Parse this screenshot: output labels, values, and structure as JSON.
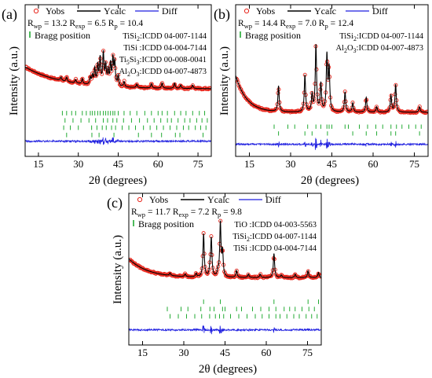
{
  "chart_data": [
    {
      "panel": "(a)",
      "type": "line",
      "xlabel": "2θ (degrees)",
      "ylabel": "Intensity (a.u.)",
      "xlim": [
        10,
        80
      ],
      "xticks": [
        "15",
        "30",
        "45",
        "60",
        "75"
      ],
      "tick_values": [
        15,
        30,
        45,
        60,
        75
      ],
      "legend": {
        "obs": "Yobs",
        "calc": "Ycalc",
        "diff": "Diff",
        "bragg": "Bragg position"
      },
      "stats": {
        "Rwp": "13.2",
        "Rexp": "6.5",
        "Rp": "10.4"
      },
      "phases": [
        {
          "name": "TiSi",
          "sub": "2",
          "rest": ":ICDD  04-007-1144"
        },
        {
          "name": "TiSi",
          "sub": "",
          "rest": " :ICDD  04-004-7144"
        },
        {
          "name": "Ti",
          "sub": "5",
          "mid": "Si",
          "sub2": "3",
          "rest": ":ICDD  00-008-0041"
        },
        {
          "name": "Al",
          "sub": "2",
          "mid": "O",
          "sub2": "3",
          "rest": ":ICDD  04-007-4873"
        }
      ],
      "background": {
        "start": 0.45,
        "end": 0.2,
        "decay": 14
      },
      "peaks": [
        {
          "x": 23.5,
          "h": 0.04
        },
        {
          "x": 25.6,
          "h": 0.05
        },
        {
          "x": 29.0,
          "h": 0.04
        },
        {
          "x": 31.5,
          "h": 0.06
        },
        {
          "x": 34.5,
          "h": 0.08
        },
        {
          "x": 35.3,
          "h": 0.1
        },
        {
          "x": 36.2,
          "h": 0.18
        },
        {
          "x": 37.3,
          "h": 0.22
        },
        {
          "x": 38.2,
          "h": 0.3
        },
        {
          "x": 39.4,
          "h": 0.36
        },
        {
          "x": 40.3,
          "h": 0.22
        },
        {
          "x": 41.2,
          "h": 0.16
        },
        {
          "x": 42.1,
          "h": 0.24
        },
        {
          "x": 43.0,
          "h": 0.3
        },
        {
          "x": 43.7,
          "h": 0.26
        },
        {
          "x": 45.0,
          "h": 0.12
        },
        {
          "x": 47.2,
          "h": 0.06
        },
        {
          "x": 52.0,
          "h": 0.04
        },
        {
          "x": 57.5,
          "h": 0.05
        },
        {
          "x": 61.5,
          "h": 0.06
        },
        {
          "x": 66.2,
          "h": 0.06
        },
        {
          "x": 68.5,
          "h": 0.04
        },
        {
          "x": 73.0,
          "h": 0.04
        }
      ],
      "bragg_rows": [
        [
          24.0,
          25.6,
          27.5,
          29.0,
          31.5,
          33.0,
          34.5,
          35.3,
          36.2,
          37.3,
          38.2,
          39.4,
          40.3,
          41.2,
          42.1,
          43.0,
          43.7,
          45.0,
          47.2,
          49.5,
          52.0,
          55.0,
          57.5,
          60.0,
          61.5,
          63.5,
          66.2,
          68.5,
          70.5,
          73.0,
          75.5,
          77.5
        ],
        [
          25.0,
          28.0,
          31.0,
          34.0,
          36.5,
          39.4,
          41.0,
          43.0,
          44.5,
          47.0,
          50.0,
          53.0,
          56.0,
          58.5,
          61.0,
          63.5,
          65.0,
          67.5,
          70.0,
          72.0,
          74.5,
          76.5,
          78.5
        ],
        [
          24.5,
          27.0,
          30.0,
          35.0,
          37.0,
          39.0,
          40.5,
          42.5,
          44.0,
          46.5,
          49.0,
          51.5,
          54.5,
          57.0,
          59.5,
          62.0,
          64.5,
          67.0,
          69.5,
          71.5,
          74.0,
          76.0,
          78.0
        ],
        [
          25.6,
          35.1,
          37.8,
          43.4,
          52.6,
          57.5,
          61.3,
          66.5,
          68.2,
          76.9
        ]
      ]
    },
    {
      "panel": "(b)",
      "type": "line",
      "xlabel": "2θ (degrees)",
      "ylabel": "Intensity (a.u.)",
      "xlim": [
        10,
        80
      ],
      "xticks": [
        "15",
        "30",
        "45",
        "60",
        "75"
      ],
      "tick_values": [
        15,
        30,
        45,
        60,
        75
      ],
      "legend": {
        "obs": "Yobs",
        "calc": "Ycalc",
        "diff": "Diff",
        "bragg": "Bragg position"
      },
      "stats": {
        "Rwp": "14.4",
        "Rexp": "7.0",
        "Rp": "12.4"
      },
      "phases": [
        {
          "name": "TiSi",
          "sub": "2",
          "rest": ":ICDD  04-007-1144"
        },
        {
          "name": "Al",
          "sub": "2",
          "mid": "O",
          "sub2": "3",
          "rest": ":ICDD  04-007-4873"
        }
      ],
      "background": {
        "start": 0.5,
        "end": 0.1,
        "decay": 4
      },
      "peaks": [
        {
          "x": 25.6,
          "h": 0.28
        },
        {
          "x": 35.2,
          "h": 0.4
        },
        {
          "x": 37.8,
          "h": 0.18
        },
        {
          "x": 39.2,
          "h": 0.72
        },
        {
          "x": 41.0,
          "h": 0.3
        },
        {
          "x": 43.2,
          "h": 0.6
        },
        {
          "x": 44.0,
          "h": 0.46
        },
        {
          "x": 49.8,
          "h": 0.22
        },
        {
          "x": 52.6,
          "h": 0.1
        },
        {
          "x": 57.5,
          "h": 0.16
        },
        {
          "x": 61.3,
          "h": 0.06
        },
        {
          "x": 66.5,
          "h": 0.18
        },
        {
          "x": 68.2,
          "h": 0.3
        },
        {
          "x": 76.9,
          "h": 0.06
        }
      ],
      "bragg_rows": [
        [
          24.0,
          29.0,
          31.5,
          36.2,
          39.2,
          41.0,
          43.2,
          44.0,
          45.0,
          49.8,
          51.0,
          55.0,
          58.0,
          61.0,
          63.5,
          66.5,
          68.5,
          70.5,
          73.0,
          75.5,
          77.5
        ],
        [
          25.6,
          35.2,
          37.8,
          43.4,
          52.6,
          57.5,
          61.3,
          66.5,
          68.2,
          76.9
        ]
      ]
    },
    {
      "panel": "(c)",
      "type": "line",
      "xlabel": "2θ (degrees)",
      "ylabel": "Intensity (a.u.)",
      "xlim": [
        10,
        80
      ],
      "xticks": [
        "15",
        "30",
        "45",
        "60",
        "75"
      ],
      "tick_values": [
        15,
        30,
        45,
        60,
        75
      ],
      "legend": {
        "obs": "Yobs",
        "calc": "Ycalc",
        "diff": "Diff",
        "bragg": "Bragg position"
      },
      "stats": {
        "Rwp": "11.7",
        "Rexp": "7.2",
        "Rp": "9.8"
      },
      "phases": [
        {
          "name": "TiO",
          "sub": "",
          "rest": " :ICDD  04-003-5563"
        },
        {
          "name": "TiSi",
          "sub": "2",
          "rest": ":ICDD  04-007-1144"
        },
        {
          "name": "TiSi",
          "sub": "",
          "rest": " :ICDD  04-004-7144"
        }
      ],
      "background": {
        "start": 0.42,
        "end": 0.2,
        "decay": 7
      },
      "peaks": [
        {
          "x": 25.0,
          "h": 0.03
        },
        {
          "x": 30.5,
          "h": 0.03
        },
        {
          "x": 34.5,
          "h": 0.04
        },
        {
          "x": 37.2,
          "h": 0.5
        },
        {
          "x": 39.5,
          "h": 0.08
        },
        {
          "x": 40.0,
          "h": 0.44
        },
        {
          "x": 42.4,
          "h": 0.06
        },
        {
          "x": 43.3,
          "h": 0.62
        },
        {
          "x": 44.1,
          "h": 0.28
        },
        {
          "x": 49.2,
          "h": 0.08
        },
        {
          "x": 53.5,
          "h": 0.04
        },
        {
          "x": 57.8,
          "h": 0.04
        },
        {
          "x": 62.8,
          "h": 0.28
        },
        {
          "x": 65.5,
          "h": 0.03
        },
        {
          "x": 70.5,
          "h": 0.04
        },
        {
          "x": 75.2,
          "h": 0.08
        },
        {
          "x": 79.0,
          "h": 0.06
        }
      ],
      "bragg_rows": [
        [
          37.2,
          43.3,
          62.8,
          75.2,
          79.0
        ],
        [
          24.0,
          29.0,
          31.5,
          36.2,
          39.5,
          41.0,
          44.1,
          45.0,
          49.2,
          51.0,
          55.0,
          58.0,
          61.0,
          63.5,
          66.5,
          68.5,
          70.5,
          73.0,
          75.5,
          77.5
        ],
        [
          25.0,
          28.0,
          31.0,
          34.0,
          36.5,
          39.4,
          41.5,
          43.0,
          44.5,
          47.0,
          50.0,
          53.0,
          56.0,
          58.5,
          61.0,
          63.5,
          65.0,
          67.5,
          70.0,
          72.0,
          74.5,
          76.5,
          78.5
        ]
      ]
    }
  ],
  "colors": {
    "obs": "#e8261c",
    "calc": "#000000",
    "diff": "#1f1fe0",
    "bragg": "#22aa33",
    "axis": "#000000"
  }
}
